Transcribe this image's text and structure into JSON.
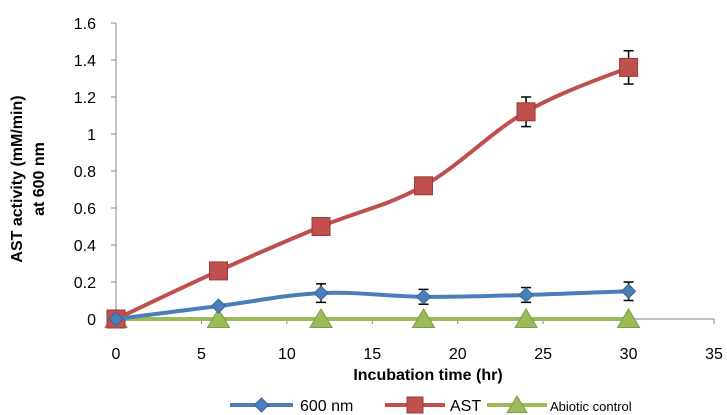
{
  "chart_data": {
    "type": "line",
    "xlabel": "Incubation time (hr)",
    "ylabel": [
      "AST activity (mM/min)",
      "at 600 nm"
    ],
    "xlim": [
      0,
      35
    ],
    "ylim": [
      0,
      1.6
    ],
    "x_ticks": [
      "0",
      "5",
      "10",
      "15",
      "20",
      "25",
      "30",
      "35"
    ],
    "y_ticks": [
      "0",
      "0.2",
      "0.4",
      "0.6",
      "0.8",
      "1",
      "1.2",
      "1.4",
      "1.6"
    ],
    "grid": false,
    "legend_position": "bottom",
    "series": [
      {
        "name": "600 nm",
        "marker": "diamond",
        "color": "#4A7EBB",
        "x": [
          0,
          6,
          12,
          18,
          24,
          30
        ],
        "y": [
          0,
          0.07,
          0.14,
          0.12,
          0.13,
          0.15
        ],
        "error": [
          0,
          0,
          0.05,
          0.04,
          0.04,
          0.05
        ]
      },
      {
        "name": "AST",
        "marker": "square",
        "color": "#C0504D",
        "x": [
          0,
          6,
          12,
          18,
          24,
          30
        ],
        "y": [
          0,
          0.26,
          0.5,
          0.72,
          1.12,
          1.36
        ],
        "error": [
          0,
          0,
          0,
          0.04,
          0.08,
          0.09
        ]
      },
      {
        "name": "Abiotic control",
        "marker": "triangle",
        "color": "#9BBB59",
        "x": [
          0,
          6,
          12,
          18,
          24,
          30
        ],
        "y": [
          0,
          0,
          0,
          0,
          0,
          0
        ],
        "error": [
          0,
          0,
          0,
          0,
          0,
          0
        ]
      }
    ]
  }
}
